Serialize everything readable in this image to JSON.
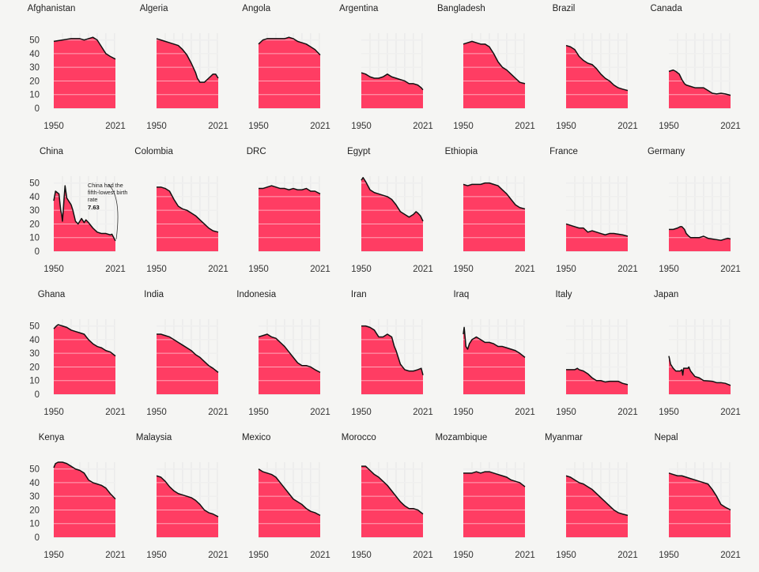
{
  "chart_data": {
    "type": "area",
    "x_start_label": "1950",
    "x_end_label": "2021",
    "xlim": [
      1950,
      2021
    ],
    "ylim": [
      0,
      55
    ],
    "y_ticks": [
      "0",
      "10",
      "20",
      "30",
      "40",
      "50"
    ],
    "grid": true,
    "fill_color": "#ff3d63",
    "line_color": "#111111",
    "annotation": {
      "country": "China",
      "text_lines": [
        "China had the",
        "fifth-lowest birth",
        "rate"
      ],
      "value": "7.63"
    },
    "countries": [
      {
        "name": "Afghanistan",
        "x": [
          1950,
          1960,
          1970,
          1980,
          1985,
          1990,
          1995,
          2000,
          2005,
          2010,
          2015,
          2021
        ],
        "y": [
          49,
          50,
          51,
          51,
          50,
          51,
          52,
          50,
          45,
          40,
          38,
          36
        ]
      },
      {
        "name": "Algeria",
        "x": [
          1950,
          1955,
          1960,
          1965,
          1970,
          1975,
          1980,
          1985,
          1990,
          1995,
          1997,
          2000,
          2005,
          2010,
          2015,
          2018,
          2021
        ],
        "y": [
          51,
          50,
          49,
          48,
          47,
          46,
          43,
          39,
          33,
          26,
          22,
          19,
          19,
          22,
          25,
          25,
          22
        ]
      },
      {
        "name": "Angola",
        "x": [
          1950,
          1955,
          1960,
          1970,
          1980,
          1985,
          1990,
          1995,
          2000,
          2005,
          2010,
          2015,
          2021
        ],
        "y": [
          47,
          50,
          51,
          51,
          51,
          52,
          51,
          49,
          48,
          47,
          45,
          43,
          39
        ]
      },
      {
        "name": "Argentina",
        "x": [
          1950,
          1955,
          1960,
          1965,
          1970,
          1975,
          1980,
          1985,
          1990,
          1995,
          2000,
          2005,
          2010,
          2015,
          2019,
          2021
        ],
        "y": [
          26,
          25,
          23,
          22,
          22,
          23,
          25,
          23,
          22,
          21,
          20,
          18,
          18,
          17,
          15,
          13.5
        ]
      },
      {
        "name": "Bangladesh",
        "x": [
          1950,
          1955,
          1960,
          1965,
          1970,
          1975,
          1980,
          1985,
          1990,
          1995,
          2000,
          2005,
          2010,
          2015,
          2021
        ],
        "y": [
          47,
          48,
          49,
          48,
          47,
          47,
          45,
          40,
          34,
          30,
          28,
          25,
          22,
          19,
          18
        ]
      },
      {
        "name": "Brazil",
        "x": [
          1950,
          1955,
          1960,
          1965,
          1970,
          1975,
          1980,
          1985,
          1990,
          1995,
          2000,
          2005,
          2010,
          2015,
          2021
        ],
        "y": [
          46,
          45,
          43,
          38,
          35,
          33,
          32,
          29,
          25,
          22,
          20,
          17,
          15,
          14,
          13
        ]
      },
      {
        "name": "Canada",
        "x": [
          1950,
          1955,
          1958,
          1962,
          1965,
          1968,
          1970,
          1975,
          1980,
          1985,
          1990,
          1995,
          2000,
          2005,
          2010,
          2015,
          2021
        ],
        "y": [
          27,
          28,
          27,
          25,
          21,
          18,
          17,
          16,
          15,
          15,
          15,
          13,
          11,
          10.5,
          11,
          10.5,
          9.5
        ]
      },
      {
        "name": "China",
        "x": [
          1950,
          1952,
          1954,
          1956,
          1958,
          1959,
          1960,
          1961,
          1962,
          1963,
          1965,
          1968,
          1970,
          1972,
          1975,
          1978,
          1980,
          1982,
          1985,
          1987,
          1990,
          1995,
          2000,
          2005,
          2010,
          2015,
          2017,
          2019,
          2021
        ],
        "y": [
          37,
          44,
          43,
          42,
          30,
          27,
          22,
          30,
          40,
          48,
          39,
          36,
          34,
          30,
          22,
          20,
          22,
          24,
          21,
          23,
          21,
          17,
          14,
          13,
          13,
          12,
          12.5,
          10,
          7.6
        ]
      },
      {
        "name": "Colombia",
        "x": [
          1950,
          1955,
          1960,
          1965,
          1970,
          1975,
          1980,
          1985,
          1990,
          1995,
          2000,
          2005,
          2010,
          2015,
          2021
        ],
        "y": [
          47,
          47,
          46,
          44,
          38,
          33,
          31,
          30,
          28,
          26,
          23,
          20,
          17,
          15,
          14
        ]
      },
      {
        "name": "DRC",
        "x": [
          1950,
          1955,
          1960,
          1965,
          1970,
          1975,
          1980,
          1985,
          1990,
          1995,
          2000,
          2005,
          2010,
          2015,
          2021
        ],
        "y": [
          46,
          46,
          47,
          48,
          47,
          46,
          46,
          45,
          46,
          45,
          45,
          46,
          44,
          44,
          42
        ]
      },
      {
        "name": "Egypt",
        "x": [
          1950,
          1952,
          1955,
          1960,
          1965,
          1970,
          1975,
          1980,
          1985,
          1990,
          1995,
          2000,
          2005,
          2010,
          2013,
          2015,
          2018,
          2021
        ],
        "y": [
          52,
          54,
          51,
          45,
          43,
          42,
          41,
          40,
          38,
          34,
          29,
          27,
          25,
          27,
          29,
          28,
          26,
          22
        ]
      },
      {
        "name": "Ethiopia",
        "x": [
          1950,
          1955,
          1960,
          1965,
          1970,
          1975,
          1980,
          1985,
          1990,
          1995,
          2000,
          2005,
          2010,
          2015,
          2021
        ],
        "y": [
          49,
          48,
          49,
          49,
          49,
          50,
          50,
          49,
          48,
          45,
          42,
          38,
          34,
          32,
          31
        ]
      },
      {
        "name": "France",
        "x": [
          1950,
          1955,
          1960,
          1965,
          1970,
          1975,
          1980,
          1985,
          1990,
          1995,
          2000,
          2005,
          2010,
          2015,
          2021
        ],
        "y": [
          20,
          19,
          18,
          17,
          17,
          14,
          15,
          14,
          13,
          12,
          13,
          13,
          12.5,
          12,
          11
        ]
      },
      {
        "name": "Germany",
        "x": [
          1950,
          1955,
          1960,
          1963,
          1965,
          1968,
          1970,
          1973,
          1975,
          1980,
          1985,
          1990,
          1995,
          2000,
          2005,
          2010,
          2015,
          2018,
          2021
        ],
        "y": [
          16,
          16,
          17,
          18,
          18,
          16,
          13,
          11,
          10,
          10,
          10,
          11,
          9.5,
          9,
          8.5,
          8,
          9,
          9.5,
          9
        ]
      },
      {
        "name": "Ghana",
        "x": [
          1950,
          1953,
          1955,
          1960,
          1965,
          1970,
          1975,
          1980,
          1985,
          1990,
          1995,
          2000,
          2005,
          2010,
          2015,
          2021
        ],
        "y": [
          48,
          50,
          51,
          50,
          49,
          47,
          46,
          45,
          44,
          40,
          37,
          35,
          34,
          32,
          31,
          28
        ]
      },
      {
        "name": "India",
        "x": [
          1950,
          1955,
          1960,
          1965,
          1970,
          1975,
          1980,
          1985,
          1990,
          1995,
          2000,
          2005,
          2010,
          2015,
          2021
        ],
        "y": [
          44,
          44,
          43,
          42,
          40,
          38,
          36,
          34,
          32,
          29,
          27,
          24,
          21,
          19,
          16
        ]
      },
      {
        "name": "Indonesia",
        "x": [
          1950,
          1955,
          1960,
          1965,
          1970,
          1975,
          1980,
          1985,
          1990,
          1995,
          2000,
          2005,
          2010,
          2015,
          2021
        ],
        "y": [
          42,
          43,
          44,
          42,
          41,
          38,
          35,
          31,
          27,
          23,
          21,
          21,
          20,
          18,
          16
        ]
      },
      {
        "name": "Iran",
        "x": [
          1950,
          1955,
          1960,
          1965,
          1970,
          1975,
          1980,
          1985,
          1988,
          1990,
          1995,
          2000,
          2005,
          2010,
          2015,
          2019,
          2021
        ],
        "y": [
          50,
          50,
          49,
          47,
          42,
          42,
          44,
          42,
          35,
          32,
          22,
          18,
          17,
          17,
          18,
          19,
          14
        ]
      },
      {
        "name": "Iraq",
        "x": [
          1950,
          1951,
          1952,
          1953,
          1955,
          1957,
          1960,
          1965,
          1970,
          1975,
          1980,
          1985,
          1990,
          1995,
          2000,
          2005,
          2010,
          2015,
          2021
        ],
        "y": [
          44,
          49,
          42,
          35,
          33,
          37,
          40,
          42,
          40,
          38,
          38,
          37,
          35,
          35,
          34,
          33,
          32,
          30,
          27
        ]
      },
      {
        "name": "Italy",
        "x": [
          1950,
          1955,
          1960,
          1963,
          1965,
          1970,
          1975,
          1980,
          1985,
          1990,
          1995,
          2000,
          2005,
          2010,
          2015,
          2021
        ],
        "y": [
          18,
          18,
          18,
          19,
          18,
          17,
          15,
          12,
          10,
          10,
          9,
          9.5,
          9.5,
          9.5,
          8,
          7
        ]
      },
      {
        "name": "Japan",
        "x": [
          1950,
          1952,
          1955,
          1958,
          1960,
          1962,
          1963,
          1965,
          1966,
          1967,
          1970,
          1972,
          1973,
          1975,
          1980,
          1985,
          1990,
          1995,
          2000,
          2005,
          2010,
          2015,
          2021
        ],
        "y": [
          28,
          22,
          19,
          17,
          17,
          17,
          17,
          18,
          14,
          19,
          19,
          19,
          20,
          17,
          13,
          12,
          10,
          9.8,
          9.5,
          8.5,
          8.5,
          8,
          6.5
        ]
      },
      {
        "name": "Kenya",
        "x": [
          1950,
          1952,
          1955,
          1960,
          1965,
          1970,
          1975,
          1980,
          1985,
          1990,
          1995,
          2000,
          2005,
          2010,
          2015,
          2021
        ],
        "y": [
          51,
          54,
          55,
          55,
          54,
          52,
          50,
          49,
          47,
          42,
          40,
          39,
          38,
          36,
          32,
          28
        ]
      },
      {
        "name": "Malaysia",
        "x": [
          1950,
          1955,
          1960,
          1965,
          1970,
          1975,
          1980,
          1985,
          1990,
          1995,
          2000,
          2005,
          2010,
          2015,
          2021
        ],
        "y": [
          45,
          44,
          41,
          37,
          34,
          32,
          31,
          30,
          29,
          27,
          24,
          20,
          18,
          17,
          15
        ]
      },
      {
        "name": "Mexico",
        "x": [
          1950,
          1955,
          1960,
          1965,
          1970,
          1975,
          1980,
          1985,
          1990,
          1995,
          2000,
          2005,
          2010,
          2015,
          2021
        ],
        "y": [
          50,
          48,
          47,
          46,
          44,
          40,
          36,
          32,
          28,
          26,
          24,
          21,
          19,
          18,
          16
        ]
      },
      {
        "name": "Morocco",
        "x": [
          1950,
          1955,
          1960,
          1965,
          1970,
          1975,
          1980,
          1985,
          1990,
          1995,
          2000,
          2005,
          2010,
          2015,
          2021
        ],
        "y": [
          52,
          52,
          49,
          46,
          44,
          41,
          38,
          34,
          30,
          26,
          23,
          21,
          21,
          20,
          17
        ]
      },
      {
        "name": "Mozambique",
        "x": [
          1950,
          1955,
          1960,
          1965,
          1970,
          1975,
          1980,
          1985,
          1990,
          1995,
          2000,
          2005,
          2010,
          2015,
          2021
        ],
        "y": [
          47,
          47,
          47,
          48,
          47,
          48,
          48,
          47,
          46,
          45,
          44,
          42,
          41,
          40,
          37
        ]
      },
      {
        "name": "Myanmar",
        "x": [
          1950,
          1955,
          1960,
          1965,
          1970,
          1975,
          1980,
          1985,
          1990,
          1995,
          2000,
          2005,
          2010,
          2015,
          2021
        ],
        "y": [
          45,
          44,
          42,
          40,
          39,
          37,
          35,
          32,
          29,
          26,
          23,
          20,
          18,
          17,
          16
        ]
      },
      {
        "name": "Nepal",
        "x": [
          1950,
          1955,
          1960,
          1965,
          1970,
          1975,
          1980,
          1985,
          1990,
          1995,
          2000,
          2005,
          2010,
          2015,
          2021
        ],
        "y": [
          47,
          46,
          45,
          45,
          44,
          43,
          42,
          41,
          40,
          39,
          35,
          30,
          24,
          22,
          20
        ]
      }
    ]
  }
}
